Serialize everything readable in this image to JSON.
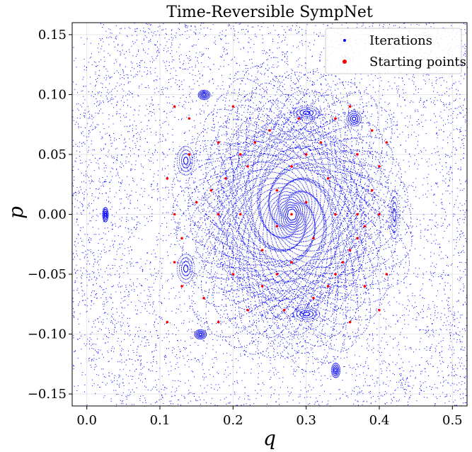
{
  "chart_data": {
    "type": "scatter",
    "title": "Time-Reversible SympNet",
    "xlabel": "q",
    "ylabel": "p",
    "xlim": [
      -0.02,
      0.52
    ],
    "ylim": [
      -0.16,
      0.16
    ],
    "x_ticks": [
      0.0,
      0.1,
      0.2,
      0.3,
      0.4,
      0.5
    ],
    "x_tick_labels": [
      "0.0",
      "0.1",
      "0.2",
      "0.3",
      "0.4",
      "0.5"
    ],
    "y_ticks": [
      -0.15,
      -0.1,
      -0.05,
      0.0,
      0.05,
      0.1,
      0.15
    ],
    "y_tick_labels": [
      "−0.15",
      "−0.10",
      "−0.05",
      "0.00",
      "0.05",
      "0.10",
      "0.15"
    ],
    "grid": true,
    "legend_position": "top-right",
    "center": [
      0.28,
      0.0
    ],
    "series": [
      {
        "name": "Iterations",
        "color": "#0000ff",
        "marker": "dot"
      },
      {
        "name": "Starting points",
        "color": "#ff0000",
        "marker": "dot",
        "points": [
          [
            0.28,
            0.0
          ],
          [
            0.26,
            0.02
          ],
          [
            0.31,
            -0.02
          ],
          [
            0.24,
            -0.03
          ],
          [
            0.33,
            0.03
          ],
          [
            0.22,
            0.04
          ],
          [
            0.35,
            -0.04
          ],
          [
            0.2,
            -0.05
          ],
          [
            0.37,
            0.05
          ],
          [
            0.18,
            0.06
          ],
          [
            0.38,
            -0.06
          ],
          [
            0.16,
            -0.07
          ],
          [
            0.39,
            0.07
          ],
          [
            0.14,
            0.08
          ],
          [
            0.4,
            -0.08
          ],
          [
            0.12,
            0.09
          ],
          [
            0.36,
            0.09
          ],
          [
            0.11,
            -0.09
          ],
          [
            0.29,
            0.08
          ],
          [
            0.27,
            -0.08
          ],
          [
            0.25,
            0.07
          ],
          [
            0.31,
            -0.07
          ],
          [
            0.23,
            0.06
          ],
          [
            0.33,
            -0.06
          ],
          [
            0.21,
            0.05
          ],
          [
            0.34,
            -0.05
          ],
          [
            0.19,
            0.03
          ],
          [
            0.36,
            -0.03
          ],
          [
            0.17,
            0.02
          ],
          [
            0.37,
            -0.02
          ],
          [
            0.15,
            0.01
          ],
          [
            0.38,
            -0.01
          ],
          [
            0.13,
            -0.02
          ],
          [
            0.39,
            0.02
          ],
          [
            0.12,
            -0.04
          ],
          [
            0.4,
            0.04
          ],
          [
            0.11,
            0.03
          ],
          [
            0.3,
            0.05
          ],
          [
            0.26,
            -0.05
          ],
          [
            0.32,
            0.06
          ],
          [
            0.24,
            -0.06
          ],
          [
            0.28,
            0.04
          ],
          [
            0.28,
            -0.04
          ],
          [
            0.3,
            0.01
          ],
          [
            0.26,
            -0.01
          ],
          [
            0.22,
            -0.08
          ],
          [
            0.34,
            0.08
          ],
          [
            0.2,
            0.09
          ],
          [
            0.36,
            -0.09
          ],
          [
            0.18,
            -0.09
          ],
          [
            0.14,
            0.05
          ],
          [
            0.41,
            -0.05
          ],
          [
            0.13,
            -0.06
          ],
          [
            0.41,
            0.06
          ],
          [
            0.12,
            0.0
          ],
          [
            0.4,
            0.0
          ],
          [
            0.18,
            0.0
          ],
          [
            0.37,
            0.0
          ],
          [
            0.21,
            0.0
          ],
          [
            0.34,
            0.0
          ]
        ]
      }
    ]
  }
}
